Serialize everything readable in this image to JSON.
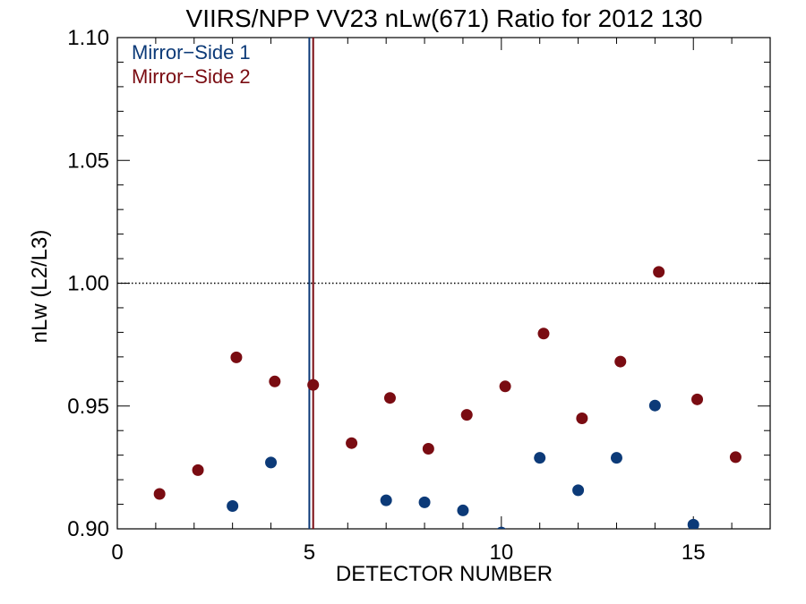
{
  "chart_data": {
    "type": "scatter",
    "title": "VIIRS/NPP VV23 nLw(671) Ratio for 2012 130",
    "xlabel": "DETECTOR NUMBER",
    "ylabel": "nLw (L2/L3)",
    "xlim": [
      0,
      17
    ],
    "ylim": [
      0.9,
      1.1
    ],
    "x_ticks": [
      0,
      5,
      10,
      15
    ],
    "y_ticks": [
      0.9,
      0.95,
      1.0,
      1.05,
      1.1
    ],
    "x_tick_labels": [
      "0",
      "5",
      "10",
      "15"
    ],
    "y_tick_labels": [
      "0.90",
      "0.95",
      "1.00",
      "1.05",
      "1.10"
    ],
    "reference_line": {
      "y": 1.0,
      "style": "dotted"
    },
    "legend_position": "top-left",
    "series": [
      {
        "name": "Mirror−Side 1",
        "color": "#0c3a78",
        "vline_x": 5.0,
        "points": [
          [
            3,
            0.9093
          ],
          [
            4,
            0.927
          ],
          [
            7,
            0.9116
          ],
          [
            8,
            0.9108
          ],
          [
            9,
            0.9075
          ],
          [
            10,
            0.8985
          ],
          [
            11,
            0.9289
          ],
          [
            12,
            0.9157
          ],
          [
            13,
            0.9289
          ],
          [
            14,
            0.9502
          ],
          [
            15,
            0.9017
          ]
        ]
      },
      {
        "name": "Mirror−Side 2",
        "color": "#7a0c12",
        "vline_x": 5.1,
        "points": [
          [
            1.1,
            0.9142
          ],
          [
            2.1,
            0.9239
          ],
          [
            3.1,
            0.9698
          ],
          [
            4.1,
            0.96
          ],
          [
            5.1,
            0.9586
          ],
          [
            6.1,
            0.9349
          ],
          [
            7.1,
            0.9533
          ],
          [
            8.1,
            0.9326
          ],
          [
            9.1,
            0.9464
          ],
          [
            10.1,
            0.958
          ],
          [
            11.1,
            0.9795
          ],
          [
            12.1,
            0.945
          ],
          [
            13.1,
            0.9681
          ],
          [
            14.1,
            1.0046
          ],
          [
            15.1,
            0.9527
          ],
          [
            16.1,
            0.9292
          ]
        ]
      }
    ]
  }
}
